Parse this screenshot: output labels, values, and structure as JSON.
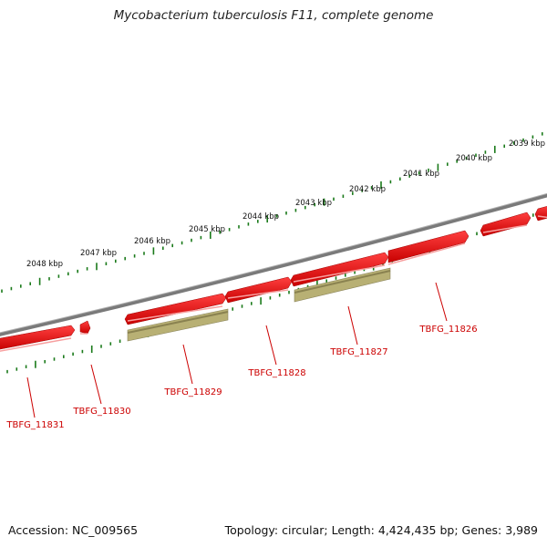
{
  "title": "Mycobacterium tuberculosis F11, complete genome",
  "footer": {
    "accession": "Accession: NC_009565",
    "summary": "Topology: circular; Length: 4,424,435 bp; Genes: 3,989"
  },
  "colors": {
    "backbone": "#7a7a7a",
    "gene_forward": "#e8000b",
    "gene_reverse": "#b8b074",
    "tick": "#1a7a1a",
    "label": "#cc0000"
  },
  "ticks": [
    "2039 kbp",
    "2040 kbp",
    "2041 kbp",
    "2042 kbp",
    "2043 kbp",
    "2044 kbp",
    "2045 kbp",
    "2046 kbp",
    "2047 kbp",
    "2048 kbp"
  ],
  "genes": [
    "TBFG_11826",
    "TBFG_11827",
    "TBFG_11828",
    "TBFG_11829",
    "TBFG_11830",
    "TBFG_11831"
  ]
}
